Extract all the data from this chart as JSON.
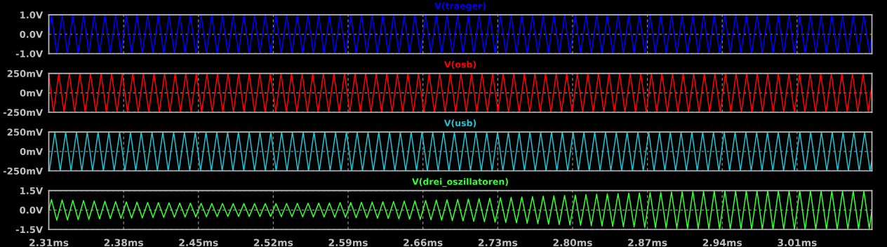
{
  "chart_data": [
    {
      "type": "line",
      "title": "V(traeger)",
      "tick_labels": "y",
      "grid": true,
      "x": [
        2.31,
        2.3125,
        2.3175,
        2.3225,
        2.3275,
        2.3325,
        2.3375,
        2.3425,
        2.3475,
        2.3525,
        2.3575,
        2.3625,
        2.3675,
        2.3725,
        2.3775,
        2.3825,
        2.3875,
        2.3925,
        2.3975,
        2.4025,
        2.4075,
        2.4125,
        2.4175,
        2.4225,
        2.4275,
        2.4325,
        2.4375,
        2.4425,
        2.4475,
        2.4525,
        2.4575,
        2.4625,
        2.4675,
        2.4725,
        2.4775,
        2.4825,
        2.4875,
        2.4925,
        2.4975,
        2.5025,
        2.5075,
        2.5125,
        2.5175,
        2.5225,
        2.5275,
        2.5325,
        2.5375,
        2.5425,
        2.5475,
        2.5525,
        2.5575,
        2.5625,
        2.5675,
        2.5725,
        2.5775,
        2.5825,
        2.5875,
        2.5925,
        2.5975,
        2.6025,
        2.6075,
        2.6125,
        2.6175,
        2.6225,
        2.6275,
        2.6325,
        2.6375,
        2.6425,
        2.6475,
        2.6525,
        2.6575,
        2.6625,
        2.6675,
        2.6725,
        2.6775,
        2.6825,
        2.6875,
        2.6925,
        2.6975,
        2.7025,
        2.7075,
        2.7125,
        2.7175,
        2.7225,
        2.7275,
        2.7325,
        2.7375,
        2.7425,
        2.7475,
        2.7525,
        2.7575,
        2.7625,
        2.7675,
        2.7725,
        2.7775,
        2.7825,
        2.7875,
        2.7925,
        2.7975,
        2.8025,
        2.8075,
        2.8125,
        2.8175,
        2.8225,
        2.8275,
        2.8325,
        2.8375,
        2.8425,
        2.8475,
        2.8525,
        2.8575,
        2.8625,
        2.8675,
        2.8725,
        2.8775,
        2.8825,
        2.8875,
        2.8925,
        2.8975,
        2.9025,
        2.9075,
        2.9125,
        2.9175,
        2.9225,
        2.9275,
        2.9325,
        2.9375,
        2.9425,
        2.9475,
        2.9525,
        2.9575,
        2.9625,
        2.9675,
        2.9725,
        2.9775,
        2.9825,
        2.9875,
        2.9925,
        2.9975,
        3.0025,
        3.0075,
        3.0125,
        3.0175,
        3.0225,
        3.0275,
        3.0325,
        3.0375,
        3.0425,
        3.0475,
        3.0525,
        3.0575,
        3.0625,
        3.0675,
        3.0725,
        3.0775,
        3.08
      ],
      "series": [
        {
          "color": "#0000ff",
          "values": [
            0,
            1,
            -1,
            1,
            -1,
            1,
            -1,
            1,
            -1,
            1,
            -1,
            1,
            -1,
            1,
            -1,
            1,
            -1,
            1,
            -1,
            1,
            -1,
            1,
            -1,
            1,
            -1,
            1,
            -1,
            1,
            -1,
            1,
            -1,
            1,
            -1,
            1,
            -1,
            1,
            -1,
            1,
            -1,
            1,
            -1,
            1,
            -1,
            1,
            -1,
            1,
            -1,
            1,
            -1,
            1,
            -1,
            1,
            -1,
            1,
            -1,
            1,
            -1,
            1,
            -1,
            1,
            -1,
            1,
            -1,
            1,
            -1,
            1,
            -1,
            1,
            -1,
            1,
            -1,
            1,
            -1,
            1,
            -1,
            1,
            -1,
            1,
            -1,
            1,
            -1,
            1,
            -1,
            1,
            -1,
            1,
            -1,
            1,
            -1,
            1,
            -1,
            1,
            -1,
            1,
            -1,
            1,
            -1,
            1,
            -1,
            1,
            -1,
            1,
            -1,
            1,
            -1,
            1,
            -1,
            1,
            -1,
            1,
            -1,
            1,
            -1,
            1,
            -1,
            1,
            -1,
            1,
            -1,
            1,
            -1,
            1,
            -1,
            1,
            -1,
            1,
            -1,
            1,
            -1,
            1,
            -1,
            1,
            -1,
            1,
            -1,
            1,
            -1,
            1,
            -1,
            1,
            -1,
            1,
            -1,
            1,
            -1,
            1,
            -1,
            1,
            -1,
            1,
            -1,
            1,
            -1,
            1,
            -1,
            0
          ]
        }
      ],
      "xlim": [
        2.31,
        3.08
      ],
      "xticks": [
        2.31,
        2.38,
        2.45,
        2.52,
        2.59,
        2.66,
        2.73,
        2.8,
        2.87,
        2.94,
        3.01
      ],
      "ylim": [
        -1,
        1
      ],
      "yticks": [
        {
          "value": 1,
          "label": "1.0V"
        },
        {
          "value": 0,
          "label": "0.0V"
        },
        {
          "value": -1,
          "label": "-1.0V"
        }
      ]
    },
    {
      "type": "line",
      "title": "V(osb)",
      "tick_labels": "y",
      "grid": true,
      "x": [
        2.31,
        2.3144,
        2.3193,
        2.3243,
        2.3292,
        2.3342,
        2.3391,
        2.3441,
        2.349,
        2.354,
        2.3589,
        2.3639,
        2.3688,
        2.3738,
        2.3787,
        2.3837,
        2.3886,
        2.3936,
        2.3985,
        2.4035,
        2.4084,
        2.4134,
        2.4183,
        2.4233,
        2.4282,
        2.4332,
        2.4381,
        2.4431,
        2.448,
        2.453,
        2.4579,
        2.4629,
        2.4678,
        2.4728,
        2.4777,
        2.4827,
        2.4876,
        2.4926,
        2.4975,
        2.5025,
        2.5074,
        2.5124,
        2.5173,
        2.5223,
        2.5272,
        2.5322,
        2.5371,
        2.5421,
        2.547,
        2.552,
        2.5569,
        2.5619,
        2.5668,
        2.5718,
        2.5767,
        2.5817,
        2.5866,
        2.5916,
        2.5965,
        2.6015,
        2.6064,
        2.6114,
        2.6163,
        2.6213,
        2.6262,
        2.6312,
        2.6361,
        2.6411,
        2.646,
        2.651,
        2.6559,
        2.6609,
        2.6658,
        2.6708,
        2.6757,
        2.6807,
        2.6856,
        2.6906,
        2.6955,
        2.7005,
        2.7054,
        2.7104,
        2.7153,
        2.7203,
        2.7252,
        2.7302,
        2.7351,
        2.7401,
        2.745,
        2.75,
        2.7549,
        2.7599,
        2.7648,
        2.7698,
        2.7747,
        2.7797,
        2.7846,
        2.7896,
        2.7945,
        2.7995,
        2.8044,
        2.8094,
        2.8143,
        2.8193,
        2.8242,
        2.8292,
        2.8341,
        2.8391,
        2.844,
        2.849,
        2.8539,
        2.8589,
        2.8638,
        2.8688,
        2.8737,
        2.8787,
        2.8836,
        2.8886,
        2.8935,
        2.8985,
        2.9034,
        2.9084,
        2.9133,
        2.9183,
        2.9232,
        2.9282,
        2.9331,
        2.9381,
        2.943,
        2.948,
        2.9529,
        2.9579,
        2.9628,
        2.9678,
        2.9727,
        2.9777,
        2.9826,
        2.9876,
        2.9925,
        2.9975,
        3.0024,
        3.0074,
        3.0123,
        3.0173,
        3.0222,
        3.0272,
        3.0321,
        3.0371,
        3.042,
        3.047,
        3.0519,
        3.0569,
        3.0618,
        3.0668,
        3.0717,
        3.0767,
        3.08
      ],
      "series": [
        {
          "color": "#ff0000",
          "values": [
            230,
            -250,
            250,
            -250,
            250,
            -250,
            250,
            -250,
            250,
            -250,
            250,
            -250,
            250,
            -250,
            250,
            -250,
            250,
            -250,
            250,
            -250,
            250,
            -250,
            250,
            -250,
            250,
            -250,
            250,
            -250,
            250,
            -250,
            250,
            -250,
            250,
            -250,
            250,
            -250,
            250,
            -250,
            250,
            -250,
            250,
            -250,
            250,
            -250,
            250,
            -250,
            250,
            -250,
            250,
            -250,
            250,
            -250,
            250,
            -250,
            250,
            -250,
            250,
            -250,
            250,
            -250,
            250,
            -250,
            250,
            -250,
            250,
            -250,
            250,
            -250,
            250,
            -250,
            250,
            -250,
            250,
            -250,
            250,
            -250,
            250,
            -250,
            250,
            -250,
            250,
            -250,
            250,
            -250,
            250,
            -250,
            250,
            -250,
            250,
            -250,
            250,
            -250,
            250,
            -250,
            250,
            -250,
            250,
            -250,
            250,
            -250,
            250,
            -250,
            250,
            -250,
            250,
            -250,
            250,
            -250,
            250,
            -250,
            250,
            -250,
            250,
            -250,
            250,
            -250,
            250,
            -250,
            250,
            -250,
            250,
            -250,
            250,
            -250,
            250,
            -250,
            250,
            -250,
            250,
            -250,
            250,
            -250,
            250,
            -250,
            250,
            -250,
            250,
            -250,
            250,
            -250,
            250,
            -250,
            250,
            -250,
            250,
            -250,
            250,
            -250,
            250,
            -250,
            250,
            -250,
            250,
            -250,
            250,
            -250,
            120
          ]
        }
      ],
      "xlim": [
        2.31,
        3.08
      ],
      "xticks": [
        2.31,
        2.38,
        2.45,
        2.52,
        2.59,
        2.66,
        2.73,
        2.8,
        2.87,
        2.94,
        3.01
      ],
      "ylim": [
        -250,
        250
      ],
      "yticks": [
        {
          "value": 250,
          "label": "250mV"
        },
        {
          "value": 0,
          "label": "0mV"
        },
        {
          "value": -250,
          "label": "-250mV"
        }
      ]
    },
    {
      "type": "line",
      "title": "V(usb)",
      "tick_labels": "y",
      "grid": true,
      "x": [
        2.31,
        2.3106,
        2.3157,
        2.3207,
        2.3258,
        2.3308,
        2.3359,
        2.3409,
        2.346,
        2.351,
        2.3561,
        2.3611,
        2.3662,
        2.3712,
        2.3763,
        2.3813,
        2.3864,
        2.3914,
        2.3965,
        2.4015,
        2.4066,
        2.4116,
        2.4167,
        2.4217,
        2.4268,
        2.4318,
        2.4369,
        2.4419,
        2.447,
        2.452,
        2.4571,
        2.4621,
        2.4672,
        2.4722,
        2.4773,
        2.4823,
        2.4874,
        2.4924,
        2.4975,
        2.5025,
        2.5076,
        2.5126,
        2.5177,
        2.5227,
        2.5278,
        2.5328,
        2.5379,
        2.5429,
        2.548,
        2.553,
        2.5581,
        2.5631,
        2.5682,
        2.5732,
        2.5783,
        2.5833,
        2.5884,
        2.5934,
        2.5985,
        2.6035,
        2.6086,
        2.6136,
        2.6187,
        2.6237,
        2.6288,
        2.6338,
        2.6389,
        2.6439,
        2.649,
        2.654,
        2.6591,
        2.6641,
        2.6692,
        2.6742,
        2.6793,
        2.6843,
        2.6894,
        2.6944,
        2.6995,
        2.7045,
        2.7096,
        2.7146,
        2.7197,
        2.7247,
        2.7298,
        2.7348,
        2.7399,
        2.7449,
        2.75,
        2.755,
        2.7601,
        2.7651,
        2.7702,
        2.7752,
        2.7803,
        2.7853,
        2.7904,
        2.7954,
        2.8005,
        2.8055,
        2.8106,
        2.8156,
        2.8207,
        2.8257,
        2.8308,
        2.8358,
        2.8409,
        2.8459,
        2.851,
        2.856,
        2.8611,
        2.8661,
        2.8712,
        2.8762,
        2.8813,
        2.8863,
        2.8914,
        2.8964,
        2.9015,
        2.9065,
        2.9116,
        2.9166,
        2.9217,
        2.9267,
        2.9318,
        2.9368,
        2.9419,
        2.9469,
        2.952,
        2.957,
        2.9621,
        2.9671,
        2.9722,
        2.9772,
        2.9823,
        2.9873,
        2.9924,
        2.9974,
        3.0025,
        3.0075,
        3.0126,
        3.0176,
        3.0227,
        3.0277,
        3.0328,
        3.0378,
        3.0429,
        3.0479,
        3.053,
        3.058,
        3.0631,
        3.0681,
        3.0732,
        3.0782,
        3.08
      ],
      "series": [
        {
          "color": "#1fc3d3",
          "values": [
            -230,
            -250,
            250,
            -250,
            250,
            -250,
            250,
            -250,
            250,
            -250,
            250,
            -250,
            250,
            -250,
            250,
            -250,
            250,
            -250,
            250,
            -250,
            250,
            -250,
            250,
            -250,
            250,
            -250,
            250,
            -250,
            250,
            -250,
            250,
            -250,
            250,
            -250,
            250,
            -250,
            250,
            -250,
            250,
            -250,
            250,
            -250,
            250,
            -250,
            250,
            -250,
            250,
            -250,
            250,
            -250,
            250,
            -250,
            250,
            -250,
            250,
            -250,
            250,
            -250,
            250,
            -250,
            250,
            -250,
            250,
            -250,
            250,
            -250,
            250,
            -250,
            250,
            -250,
            250,
            -250,
            250,
            -250,
            250,
            -250,
            250,
            -250,
            250,
            -250,
            250,
            -250,
            250,
            -250,
            250,
            -250,
            250,
            -250,
            250,
            -250,
            250,
            -250,
            250,
            -250,
            250,
            -250,
            250,
            -250,
            250,
            -250,
            250,
            -250,
            250,
            -250,
            250,
            -250,
            250,
            -250,
            250,
            -250,
            250,
            -250,
            250,
            -250,
            250,
            -250,
            250,
            -250,
            250,
            -250,
            250,
            -250,
            250,
            -250,
            250,
            -250,
            250,
            -250,
            250,
            -250,
            250,
            -250,
            250,
            -250,
            250,
            -250,
            250,
            -250,
            250,
            -250,
            250,
            -250,
            250,
            -250,
            250,
            -250,
            250,
            -250,
            250,
            -250,
            250,
            -250,
            250,
            -250,
            -120
          ]
        }
      ],
      "xlim": [
        2.31,
        3.08
      ],
      "xticks": [
        2.31,
        2.38,
        2.45,
        2.52,
        2.59,
        2.66,
        2.73,
        2.8,
        2.87,
        2.94,
        3.01
      ],
      "ylim": [
        -250,
        250
      ],
      "yticks": [
        {
          "value": 250,
          "label": "250mV"
        },
        {
          "value": 0,
          "label": "0mV"
        },
        {
          "value": -250,
          "label": "-250mV"
        }
      ]
    },
    {
      "type": "line",
      "title": "V(drei_oszillatoren)",
      "grid": true,
      "x": [
        2.31,
        2.3125,
        2.3175,
        2.3225,
        2.3275,
        2.3325,
        2.3375,
        2.3425,
        2.3475,
        2.3525,
        2.3575,
        2.3625,
        2.3675,
        2.3725,
        2.3775,
        2.3825,
        2.3875,
        2.3925,
        2.3975,
        2.4025,
        2.4075,
        2.4125,
        2.4175,
        2.4225,
        2.4275,
        2.4325,
        2.4375,
        2.4425,
        2.4475,
        2.4525,
        2.4575,
        2.4625,
        2.4675,
        2.4725,
        2.4775,
        2.4825,
        2.4875,
        2.4925,
        2.4975,
        2.5025,
        2.5075,
        2.5125,
        2.5175,
        2.5225,
        2.5275,
        2.5325,
        2.5375,
        2.5425,
        2.5475,
        2.5525,
        2.5575,
        2.5625,
        2.5675,
        2.5725,
        2.5775,
        2.5825,
        2.5875,
        2.5925,
        2.5975,
        2.6025,
        2.6075,
        2.6125,
        2.6175,
        2.6225,
        2.6275,
        2.6325,
        2.6375,
        2.6425,
        2.6475,
        2.6525,
        2.6575,
        2.6625,
        2.6675,
        2.6725,
        2.6775,
        2.6825,
        2.6875,
        2.6925,
        2.6975,
        2.7025,
        2.7075,
        2.7125,
        2.7175,
        2.7225,
        2.7275,
        2.7325,
        2.7375,
        2.7425,
        2.7475,
        2.7525,
        2.7575,
        2.7625,
        2.7675,
        2.7725,
        2.7775,
        2.7825,
        2.7875,
        2.7925,
        2.7975,
        2.8025,
        2.8075,
        2.8125,
        2.8175,
        2.8225,
        2.8275,
        2.8325,
        2.8375,
        2.8425,
        2.8475,
        2.8525,
        2.8575,
        2.8625,
        2.8675,
        2.8725,
        2.8775,
        2.8825,
        2.8875,
        2.8925,
        2.8975,
        2.9025,
        2.9075,
        2.9125,
        2.9175,
        2.9225,
        2.9275,
        2.9325,
        2.9375,
        2.9425,
        2.9475,
        2.9525,
        2.9575,
        2.9625,
        2.9675,
        2.9725,
        2.9775,
        2.9825,
        2.9875,
        2.9925,
        2.9975,
        3.0025,
        3.0075,
        3.0125,
        3.0175,
        3.0225,
        3.0275,
        3.0325,
        3.0375,
        3.0425,
        3.0475,
        3.0525,
        3.0575,
        3.0625,
        3.0675,
        3.0725,
        3.0775,
        3.08
      ],
      "series": [
        {
          "color": "#33ff33",
          "values": [
            0,
            0.81,
            -0.79,
            0.78,
            -0.77,
            0.75,
            -0.74,
            0.73,
            -0.71,
            0.7,
            -0.69,
            0.68,
            -0.66,
            0.65,
            -0.64,
            0.63,
            -0.62,
            0.61,
            -0.6,
            0.59,
            -0.58,
            0.57,
            -0.57,
            0.56,
            -0.55,
            0.54,
            -0.54,
            0.53,
            -0.53,
            0.52,
            -0.52,
            0.51,
            -0.51,
            0.51,
            -0.5,
            0.5,
            -0.5,
            0.5,
            -0.5,
            0.5,
            -0.5,
            0.5,
            -0.5,
            0.5,
            -0.51,
            0.51,
            -0.51,
            0.52,
            -0.52,
            0.53,
            -0.53,
            0.54,
            -0.54,
            0.55,
            -0.56,
            0.57,
            -0.57,
            0.58,
            -0.59,
            0.6,
            -0.61,
            0.62,
            -0.63,
            0.64,
            -0.65,
            0.66,
            -0.68,
            0.69,
            -0.7,
            0.71,
            -0.73,
            0.74,
            -0.75,
            0.77,
            -0.78,
            0.79,
            -0.81,
            0.82,
            -0.84,
            0.85,
            -0.87,
            0.88,
            -0.9,
            0.91,
            -0.93,
            0.95,
            -0.96,
            0.98,
            -0.99,
            1.01,
            -1.02,
            1.04,
            -1.05,
            1.07,
            -1.09,
            1.1,
            -1.12,
            1.13,
            -1.15,
            1.16,
            -1.18,
            1.19,
            -1.21,
            1.22,
            -1.23,
            1.25,
            -1.26,
            1.27,
            -1.29,
            1.3,
            -1.31,
            1.32,
            -1.34,
            1.35,
            -1.36,
            1.37,
            -1.38,
            1.39,
            -1.4,
            1.41,
            -1.42,
            1.43,
            -1.43,
            1.44,
            -1.45,
            1.46,
            -1.46,
            1.47,
            -1.47,
            1.48,
            -1.48,
            1.49,
            -1.49,
            1.49,
            -1.5,
            1.5,
            -1.5,
            1.5,
            -1.5,
            1.5,
            -1.5,
            1.5,
            -1.5,
            1.5,
            -1.49,
            1.49,
            -1.49,
            1.48,
            -1.48,
            1.47,
            -1.47,
            1.46,
            -1.46,
            1.45,
            -1.44,
            0
          ]
        }
      ],
      "xlim": [
        2.31,
        3.08
      ],
      "xticks": [
        {
          "value": 2.31,
          "label": "2.31ms"
        },
        {
          "value": 2.38,
          "label": "2.38ms"
        },
        {
          "value": 2.45,
          "label": "2.45ms"
        },
        {
          "value": 2.52,
          "label": "2.52ms"
        },
        {
          "value": 2.59,
          "label": "2.59ms"
        },
        {
          "value": 2.66,
          "label": "2.66ms"
        },
        {
          "value": 2.73,
          "label": "2.73ms"
        },
        {
          "value": 2.8,
          "label": "2.80ms"
        },
        {
          "value": 2.87,
          "label": "2.87ms"
        },
        {
          "value": 2.94,
          "label": "2.94ms"
        },
        {
          "value": 3.01,
          "label": "3.01ms"
        }
      ],
      "ylim": [
        -1.5,
        1.5
      ],
      "yticks": [
        {
          "value": 1.5,
          "label": "1.5V"
        },
        {
          "value": 0,
          "label": "0.0V"
        },
        {
          "value": -1.5,
          "label": "-1.5V"
        }
      ]
    }
  ]
}
